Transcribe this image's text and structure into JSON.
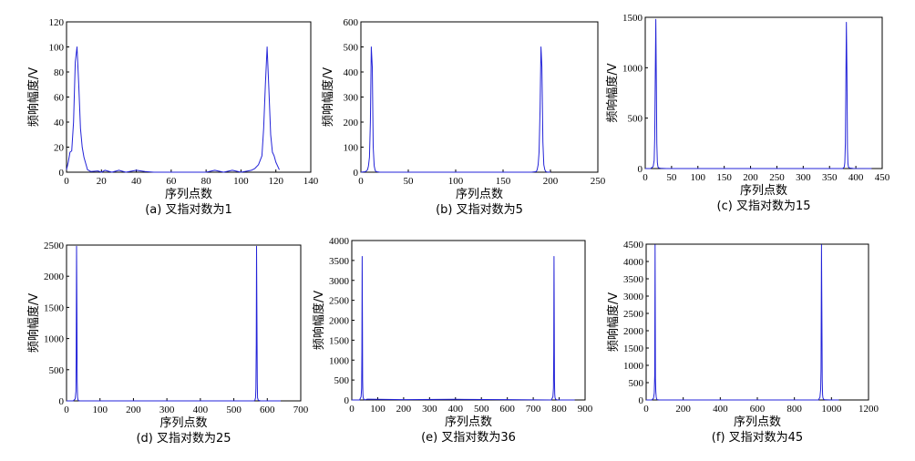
{
  "chart_data": [
    {
      "type": "line",
      "caption": "(a) 叉指对数为1",
      "xlabel": "序列点数",
      "ylabel": "频响幅度/V",
      "xlim": [
        0,
        140
      ],
      "ylim": [
        0,
        120
      ],
      "xticks": [
        0,
        20,
        40,
        60,
        80,
        100,
        120,
        140
      ],
      "yticks": [
        0,
        20,
        40,
        60,
        80,
        100,
        120
      ],
      "x": [
        0,
        1,
        2,
        3,
        4,
        5,
        6,
        7,
        8,
        9,
        10,
        12,
        14,
        18,
        20,
        22,
        26,
        30,
        34,
        40,
        45,
        50,
        60,
        70,
        80,
        85,
        90,
        95,
        100,
        104,
        106,
        108,
        110,
        112,
        113,
        114,
        115,
        116,
        117,
        118,
        119,
        120,
        122
      ],
      "values": [
        2,
        8,
        16,
        17,
        40,
        88,
        100,
        70,
        35,
        20,
        12,
        2,
        0.5,
        1,
        0,
        1.5,
        0,
        1.5,
        0,
        1.5,
        0.5,
        0,
        0,
        0,
        0,
        1.5,
        0,
        1.5,
        0,
        1,
        1.5,
        3,
        6,
        13,
        35,
        70,
        100,
        65,
        30,
        16,
        13,
        8,
        2
      ]
    },
    {
      "type": "line",
      "caption": "(b) 叉指对数为5",
      "xlabel": "序列点数",
      "ylabel": "频响幅度/V",
      "xlim": [
        0,
        250
      ],
      "ylim": [
        0,
        600
      ],
      "xticks": [
        0,
        50,
        100,
        150,
        200,
        250
      ],
      "yticks": [
        0,
        100,
        200,
        300,
        400,
        500,
        600
      ],
      "x": [
        0,
        5,
        7,
        8,
        9,
        10,
        11,
        12,
        13,
        14,
        15,
        16,
        20,
        30,
        60,
        100,
        140,
        180,
        185,
        186,
        187,
        188,
        189,
        190,
        191,
        192,
        193,
        194,
        195,
        196,
        200
      ],
      "values": [
        0,
        2,
        10,
        25,
        60,
        200,
        500,
        420,
        100,
        25,
        8,
        2,
        0,
        0,
        0,
        0,
        0,
        0,
        2,
        10,
        30,
        80,
        250,
        500,
        420,
        120,
        30,
        10,
        3,
        1,
        0
      ]
    },
    {
      "type": "line",
      "caption": "(c) 叉指对数为15",
      "xlabel": "序列点数",
      "ylabel": "频响幅度/V",
      "xlim": [
        0,
        450
      ],
      "ylim": [
        0,
        1500
      ],
      "xticks": [
        0,
        50,
        100,
        150,
        200,
        250,
        300,
        350,
        400,
        450
      ],
      "yticks": [
        0,
        500,
        1000,
        1500
      ],
      "x": [
        0,
        10,
        15,
        17,
        18,
        19,
        20,
        21,
        22,
        23,
        24,
        25,
        30,
        40,
        100,
        200,
        300,
        375,
        378,
        379,
        380,
        381,
        382,
        383,
        384,
        385,
        386,
        388,
        395,
        430
      ],
      "values": [
        0,
        0,
        20,
        80,
        300,
        900,
        1480,
        950,
        250,
        60,
        20,
        8,
        2,
        0,
        0,
        0,
        0,
        0,
        15,
        60,
        250,
        800,
        1450,
        980,
        200,
        50,
        15,
        5,
        1,
        0
      ]
    },
    {
      "type": "line",
      "caption": "(d) 叉指对数为25",
      "xlabel": "序列点数",
      "ylabel": "频响幅度/V",
      "xlim": [
        0,
        700
      ],
      "ylim": [
        0,
        2500
      ],
      "xticks": [
        0,
        100,
        200,
        300,
        400,
        500,
        600,
        700
      ],
      "yticks": [
        0,
        500,
        1000,
        1500,
        2000,
        2500
      ],
      "x": [
        0,
        20,
        26,
        28,
        29,
        30,
        31,
        32,
        33,
        34,
        36,
        40,
        100,
        300,
        500,
        560,
        563,
        565,
        566,
        567,
        568,
        569,
        570,
        571,
        573,
        580,
        640
      ],
      "values": [
        0,
        0,
        30,
        150,
        700,
        2480,
        1400,
        300,
        60,
        20,
        5,
        0,
        0,
        0,
        0,
        0,
        10,
        50,
        200,
        900,
        2480,
        1400,
        300,
        50,
        10,
        0,
        0
      ]
    },
    {
      "type": "line",
      "caption": "(e) 叉指对数为36",
      "xlabel": "序列点数",
      "ylabel": "频响幅度/V",
      "xlim": [
        0,
        900
      ],
      "ylim": [
        0,
        4000
      ],
      "xticks": [
        0,
        100,
        200,
        300,
        400,
        500,
        600,
        700,
        800,
        900
      ],
      "yticks": [
        0,
        500,
        1000,
        1500,
        2000,
        2500,
        3000,
        3500,
        4000
      ],
      "x": [
        0,
        30,
        36,
        38,
        39,
        40,
        41,
        42,
        43,
        44,
        46,
        50,
        60,
        200,
        400,
        600,
        770,
        776,
        778,
        779,
        780,
        781,
        782,
        783,
        784,
        786,
        790,
        800,
        860
      ],
      "values": [
        0,
        0,
        80,
        300,
        1200,
        3600,
        1900,
        500,
        150,
        60,
        20,
        5,
        20,
        10,
        15,
        10,
        0,
        80,
        300,
        1200,
        3600,
        1900,
        500,
        150,
        60,
        20,
        5,
        0,
        0
      ]
    },
    {
      "type": "line",
      "caption": "(f) 叉指对数为45",
      "xlabel": "序列点数",
      "ylabel": "频响幅度/V",
      "xlim": [
        0,
        1200
      ],
      "ylim": [
        0,
        4500
      ],
      "xticks": [
        0,
        200,
        400,
        600,
        800,
        1000,
        1200
      ],
      "yticks": [
        0,
        500,
        1000,
        1500,
        2000,
        2500,
        3000,
        3500,
        4000,
        4500
      ],
      "x": [
        0,
        30,
        40,
        44,
        46,
        48,
        50,
        52,
        54,
        56,
        58,
        62,
        70,
        200,
        500,
        800,
        930,
        938,
        942,
        944,
        946,
        948,
        950,
        952,
        954,
        958,
        966,
        1000,
        1040
      ],
      "values": [
        0,
        0,
        50,
        200,
        700,
        4480,
        600,
        250,
        100,
        40,
        15,
        5,
        0,
        0,
        0,
        0,
        0,
        80,
        300,
        900,
        4480,
        2600,
        600,
        150,
        60,
        15,
        5,
        0,
        0
      ]
    }
  ]
}
